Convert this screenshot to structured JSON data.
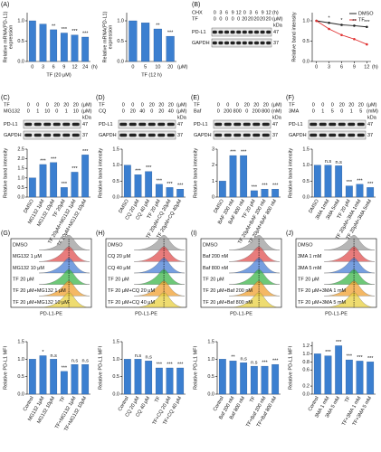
{
  "chart_data": [
    {
      "type": "bar",
      "panel": "(A)",
      "ylabel": [
        "Relative mRNA(PD-L1)",
        "expression"
      ],
      "xlabel": "TF (20 μM)",
      "x_unit": "(h)",
      "categories": [
        0,
        3,
        6,
        9,
        12,
        24
      ],
      "values": [
        1.0,
        0.92,
        0.78,
        0.7,
        0.65,
        0.6
      ],
      "annotations": [
        null,
        null,
        "**",
        "***",
        "***",
        "***"
      ],
      "color": "#3b7fd0",
      "ylim": [
        0,
        1.2
      ],
      "yticks": [
        {
          "value": 0,
          "label": "0.0"
        },
        {
          "value": 0.5,
          "label": "0.5"
        },
        {
          "value": 1,
          "label": "1.0"
        }
      ]
    },
    {
      "type": "bar",
      "ylabel": [
        "Relative mRNA(PD-L1)",
        "expression"
      ],
      "xlabel": "TF (12 h)",
      "x_unit": "(μM)",
      "categories": [
        0,
        5,
        10,
        20
      ],
      "values": [
        1.0,
        0.95,
        0.8,
        0.62
      ],
      "annotations": [
        null,
        null,
        "**",
        "***"
      ],
      "color": "#3b7fd0",
      "ylim": [
        0,
        1.2
      ],
      "yticks": [
        {
          "value": 0,
          "label": "0.0"
        },
        {
          "value": 0.5,
          "label": "0.5"
        },
        {
          "value": 1,
          "label": "1.0"
        }
      ]
    },
    {
      "type": "line",
      "panel": "(B)",
      "ylabel": "Relative band intensity",
      "x_unit": "(h)",
      "x": [
        0,
        3,
        6,
        9,
        12
      ],
      "xlim": [
        -1,
        13
      ],
      "xticks": [
        0,
        3,
        6,
        9,
        12
      ],
      "series": [
        {
          "name": "DMSO",
          "color": "#222222",
          "values": [
            1.0,
            0.95,
            0.9,
            0.88,
            0.85
          ]
        },
        {
          "name": "TF",
          "color": "#e03030",
          "values": [
            1.0,
            0.8,
            0.65,
            0.55,
            0.42
          ]
        }
      ],
      "annotations": [
        null,
        "*",
        "*",
        "**",
        "***"
      ],
      "ylim": [
        0,
        1.2
      ],
      "yticks": [
        {
          "value": 0,
          "label": "0.0"
        },
        {
          "value": 0.5,
          "label": "0.5"
        },
        {
          "value": 1,
          "label": "1.0"
        }
      ],
      "blot": {
        "rows": [
          {
            "name": "CHX",
            "values": [
              0,
              3,
              6,
              9,
              12,
              0,
              3,
              6,
              9,
              12
            ],
            "unit": "(h)"
          },
          {
            "name": "TF",
            "values": [
              0,
              0,
              0,
              0,
              0,
              20,
              20,
              20,
              20,
              20
            ],
            "unit": "(μM)"
          }
        ],
        "bands": [
          "PD-L1",
          "GAPDH"
        ],
        "kda_label": "kDa",
        "kda": [
          47,
          37
        ]
      }
    },
    {
      "type": "bar",
      "panel": "(C)",
      "ylabel": "Relative band intensity",
      "categories": [
        "DMSO",
        "MG132 1μM",
        "MG132 10μM",
        "TF 20μM",
        "TF 20μM+MG132 1μM",
        "TF 20μM+MG132 10μM"
      ],
      "values": [
        1.0,
        1.7,
        1.8,
        0.5,
        1.3,
        2.2
      ],
      "annotations": [
        null,
        "***",
        "***",
        "***",
        "***",
        "***"
      ],
      "color": "#3b7fd0",
      "ylim": [
        0,
        2.5
      ],
      "yticks": [
        {
          "value": 0,
          "label": "0.0"
        },
        {
          "value": 0.5,
          "label": "0.5"
        },
        {
          "value": 1,
          "label": "1.0"
        },
        {
          "value": 1.5,
          "label": "1.5"
        },
        {
          "value": 2,
          "label": "2.0"
        },
        {
          "value": 2.5,
          "label": "2.5"
        }
      ],
      "blot": {
        "rows": [
          {
            "name": "TF",
            "values": [
              0,
              0,
              0,
              20,
              20,
              20
            ],
            "unit": "(μM)"
          },
          {
            "name": "MG132",
            "values": [
              0,
              1,
              10,
              0,
              1,
              10
            ],
            "unit": "(μM)"
          }
        ],
        "bands": [
          "PD-L1",
          "GAPDH"
        ],
        "kda_label": "kDa",
        "kda": [
          47,
          37
        ]
      }
    },
    {
      "type": "bar",
      "panel": "(D)",
      "ylabel": "Relative band intensity",
      "categories": [
        "DMSO",
        "CQ 20 μM",
        "CQ 40 μM",
        "TF 20 μM",
        "TF 20μM+CQ 20μM",
        "TF 20μM+CQ 40μM"
      ],
      "values": [
        1.0,
        0.7,
        0.8,
        0.4,
        0.3,
        0.25
      ],
      "annotations": [
        null,
        "***",
        "***",
        "***",
        "***",
        "***"
      ],
      "color": "#3b7fd0",
      "ylim": [
        0,
        1.5
      ],
      "yticks": [
        {
          "value": 0,
          "label": "0.0"
        },
        {
          "value": 0.5,
          "label": "0.5"
        },
        {
          "value": 1,
          "label": "1.0"
        },
        {
          "value": 1.5,
          "label": "1.5"
        }
      ],
      "blot": {
        "rows": [
          {
            "name": "TF",
            "values": [
              0,
              0,
              0,
              20,
              20,
              20
            ],
            "unit": "(μM)"
          },
          {
            "name": "CQ",
            "values": [
              0,
              20,
              40,
              0,
              20,
              40
            ],
            "unit": "(μM)"
          }
        ],
        "bands": [
          "PD-L1",
          "GAPDH"
        ],
        "kda_label": "kDa",
        "kda": [
          47,
          37
        ]
      }
    },
    {
      "type": "bar",
      "panel": "(E)",
      "ylabel": "Relative band intensity",
      "categories": [
        "DMSO",
        "BAF 200 nM",
        "BAF 800 nM",
        "TF 20 μM",
        "TF 20μM+BAF 200 nM",
        "TF 20μM+BAF 800 nM"
      ],
      "values": [
        1.0,
        2.6,
        2.6,
        0.4,
        0.5,
        0.5
      ],
      "annotations": [
        null,
        "***",
        "***",
        "***",
        "***",
        "***"
      ],
      "color": "#3b7fd0",
      "ylim": [
        0,
        3
      ],
      "yticks": [
        0,
        1,
        2,
        3
      ],
      "blot": {
        "rows": [
          {
            "name": "TF",
            "values": [
              0,
              0,
              0,
              20,
              20,
              20
            ],
            "unit": "(μM)"
          },
          {
            "name": "Baf",
            "values": [
              0,
              200,
              800,
              0,
              200,
              800
            ],
            "unit": "(nM)"
          }
        ],
        "bands": [
          "PD-L1",
          "GAPDH"
        ],
        "kda_label": "kDa",
        "kda": [
          47,
          37
        ]
      }
    },
    {
      "type": "bar",
      "panel": "(F)",
      "ylabel": "Relative band intensity",
      "categories": [
        "DMSO",
        "3MA 1mM",
        "3MA 5mM",
        "TF 20 μM",
        "TF 20μM+3MA 1mM",
        "TF 20μM+3MA 5mM"
      ],
      "values": [
        1.0,
        1.0,
        0.98,
        0.35,
        0.4,
        0.3
      ],
      "annotations": [
        null,
        "n.s",
        "n.s",
        "***",
        "***",
        "***"
      ],
      "color": "#3b7fd0",
      "ylim": [
        0,
        1.5
      ],
      "yticks": [
        {
          "value": 0,
          "label": "0.0"
        },
        {
          "value": 0.5,
          "label": "0.5"
        },
        {
          "value": 1,
          "label": "1.0"
        },
        {
          "value": 1.5,
          "label": "1.5"
        }
      ],
      "blot": {
        "rows": [
          {
            "name": "TF",
            "values": [
              0,
              0,
              0,
              20,
              20,
              20
            ],
            "unit": "(μM)"
          },
          {
            "name": "3MA",
            "values": [
              0,
              1,
              5,
              0,
              1,
              5
            ],
            "unit": "(mM)"
          }
        ],
        "bands": [
          "PD-L1",
          "GAPDH"
        ],
        "kda_label": "kDa",
        "kda": [
          47,
          37
        ]
      }
    },
    {
      "type": "bar",
      "panel": "(G)",
      "ylabel": "Relative PD-L1 MFI",
      "categories": [
        "Control",
        "MG132 1μM",
        "MG132 10μM",
        "TF",
        "TF+MG132 1μM",
        "TF+MG132 10μM"
      ],
      "values": [
        1.0,
        1.1,
        1.0,
        0.65,
        0.85,
        0.85
      ],
      "annotations": [
        null,
        "*",
        "n.s",
        "***",
        "n.s",
        "n.s"
      ],
      "color": "#3b7fd0",
      "ylim": [
        0,
        1.5
      ],
      "yticks": [
        {
          "value": 0,
          "label": "0.0"
        },
        {
          "value": 0.5,
          "label": "0.5"
        },
        {
          "value": 1,
          "label": "1.0"
        },
        {
          "value": 1.5,
          "label": "1.5"
        }
      ],
      "flow": {
        "legend": [
          "DMSO",
          "MG132 1 μM",
          "MG132 10 μM",
          "TF 20 μM",
          "TF 20 μM+MG132 1 μM",
          "TF 20 μM+MG132 10 μM"
        ],
        "colors": [
          "#9e9e9e",
          "#e05050",
          "#4a7fd6",
          "#3cb54a",
          "#f0a030",
          "#e8d040"
        ],
        "xlabel": "PD-L1-PE"
      }
    },
    {
      "type": "bar",
      "panel": "(H)",
      "ylabel": "Relative PD-L1 MFI",
      "categories": [
        "Control",
        "CQ 20 μM",
        "CQ 40 μM",
        "TF",
        "TF+CQ 20 μM",
        "TF+CQ 40 μM"
      ],
      "values": [
        1.0,
        1.0,
        0.95,
        0.75,
        0.75,
        0.75
      ],
      "annotations": [
        null,
        "n.s",
        "n.s",
        "***",
        "***",
        "***"
      ],
      "color": "#3b7fd0",
      "ylim": [
        0,
        1.5
      ],
      "yticks": [
        {
          "value": 0,
          "label": "0.0"
        },
        {
          "value": 0.5,
          "label": "0.5"
        },
        {
          "value": 1,
          "label": "1.0"
        },
        {
          "value": 1.5,
          "label": "1.5"
        }
      ],
      "flow": {
        "legend": [
          "DMSO",
          "CQ 20 μM",
          "CQ 40 μM",
          "TF 20 μM",
          "TF 20 μM+CQ 20 μM",
          "TF 20 μM+CQ 40 μM"
        ],
        "colors": [
          "#9e9e9e",
          "#e05050",
          "#4a7fd6",
          "#3cb54a",
          "#f0a030",
          "#e8d040"
        ],
        "xlabel": "PD-L1-PE"
      }
    },
    {
      "type": "bar",
      "panel": "(I)",
      "ylabel": "Relative PD-L1 MFI",
      "categories": [
        "Control",
        "Baf 200 nM",
        "Baf 800 nM",
        "TF",
        "TF+Baf 200 nM",
        "TF+Baf 800 nM"
      ],
      "values": [
        1.0,
        0.95,
        0.9,
        0.8,
        0.8,
        0.85
      ],
      "annotations": [
        null,
        "**",
        "n.s",
        "n.s",
        "***",
        "***"
      ],
      "color": "#3b7fd0",
      "ylim": [
        0,
        1.5
      ],
      "yticks": [
        {
          "value": 0,
          "label": "0.0"
        },
        {
          "value": 0.5,
          "label": "0.5"
        },
        {
          "value": 1,
          "label": "1.0"
        },
        {
          "value": 1.5,
          "label": "1.5"
        }
      ],
      "flow": {
        "legend": [
          "DMSO",
          "Baf 200 nM",
          "Baf 800 nM",
          "TF 20 μM",
          "TF 20 μM+Baf 200 nM",
          "TF 20 μM+Baf 800 nM"
        ],
        "colors": [
          "#9e9e9e",
          "#e05050",
          "#4a7fd6",
          "#3cb54a",
          "#f0a030",
          "#e8d040"
        ],
        "xlabel": "PD-L1-PE"
      }
    },
    {
      "type": "bar",
      "panel": "(J)",
      "ylabel": "Relative PD-L1 MFI",
      "categories": [
        "Control",
        "3MA 1 mM",
        "3MA 5 mM",
        "TF",
        "TF+3MA 1 mM",
        "TF+3MA 5 mM"
      ],
      "values": [
        1.0,
        0.95,
        1.2,
        0.85,
        0.82,
        0.8
      ],
      "annotations": [
        null,
        "***",
        "***",
        "***",
        "***",
        "***"
      ],
      "color": "#3b7fd0",
      "ylim": [
        0,
        1.3
      ],
      "yticks": [
        {
          "value": 0,
          "label": "0.0"
        },
        {
          "value": 0.2,
          "label": "0.2"
        },
        {
          "value": 0.6,
          "label": "0.6"
        },
        {
          "value": 0.8,
          "label": "0.8"
        },
        {
          "value": 1,
          "label": "1.0"
        },
        {
          "value": 1.2,
          "label": "1.2"
        }
      ],
      "flow": {
        "legend": [
          "DMSO",
          "3MA 1 mM",
          "3MA 5 mM",
          "TF 20 μM",
          "TF 20 μM+3MA 1 mM",
          "TF 20 μM+3MA 5 mM"
        ],
        "colors": [
          "#9e9e9e",
          "#e05050",
          "#4a7fd6",
          "#3cb54a",
          "#f0a030",
          "#e8d040"
        ],
        "xlabel": "PD-L1-PE"
      }
    }
  ]
}
